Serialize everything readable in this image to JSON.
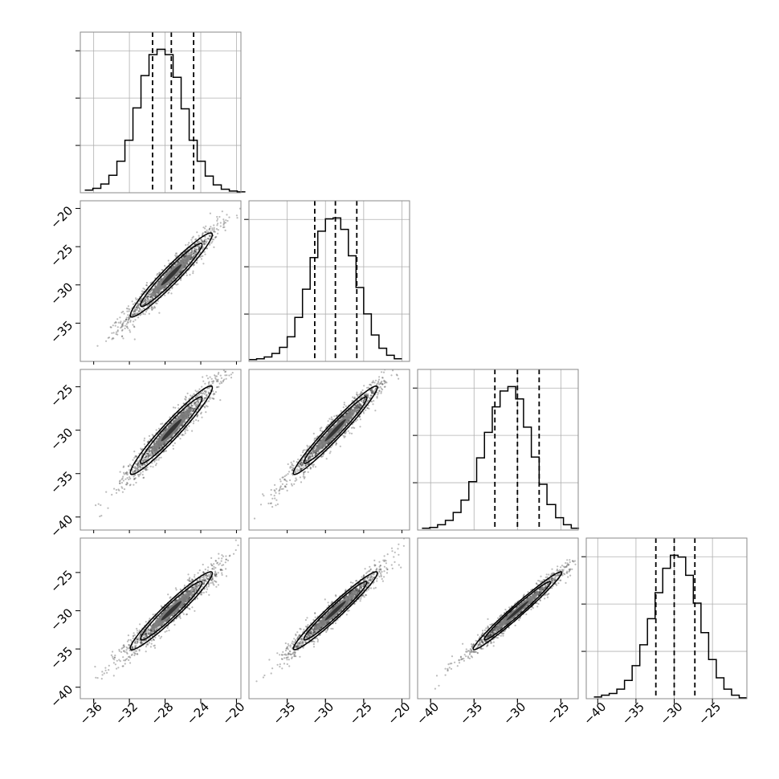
{
  "chart_data": {
    "type": "corner",
    "n_parameters": 4,
    "parameter_labels": [
      "",
      "",
      "",
      ""
    ],
    "axis_ranges": [
      [
        -37.5,
        -19.5
      ],
      [
        -40.0,
        -19.0
      ],
      [
        -41.5,
        -23.0
      ],
      [
        -41.5,
        -20.5
      ]
    ],
    "ticks": [
      [
        -36,
        -32,
        -28,
        -24,
        -20
      ],
      [
        -35,
        -30,
        -25,
        -20
      ],
      [
        -40,
        -35,
        -30,
        -25
      ],
      [
        -40,
        -35,
        -30,
        -25
      ]
    ],
    "tick_labels": [
      [
        "−36",
        "−32",
        "−28",
        "−24",
        "−20"
      ],
      [
        "−35",
        "−30",
        "−25",
        "−20"
      ],
      [
        "−40",
        "−35",
        "−30",
        "−25"
      ],
      [
        "−40",
        "−35",
        "−30",
        "−25"
      ]
    ],
    "marginals": [
      {
        "param": 0,
        "median": -27.3,
        "q16": -29.4,
        "q84": -24.8,
        "bin_edges": [
          -37.0,
          -36.1,
          -35.2,
          -34.3,
          -33.4,
          -32.5,
          -31.6,
          -30.7,
          -29.8,
          -28.9,
          -28.0,
          -27.1,
          -26.2,
          -25.3,
          -24.4,
          -23.5,
          -22.6,
          -21.7,
          -20.8,
          -19.9,
          -19.0
        ],
        "counts": [
          3,
          5,
          10,
          20,
          36,
          60,
          97,
          134,
          158,
          164,
          158,
          132,
          96,
          60,
          36,
          19,
          9,
          4,
          2,
          1
        ]
      },
      {
        "param": 1,
        "median": -28.7,
        "q16": -31.4,
        "q84": -25.9,
        "bin_edges": [
          -40.0,
          -39.0,
          -38.0,
          -37.0,
          -36.0,
          -35.0,
          -34.0,
          -33.0,
          -32.0,
          -31.0,
          -30.0,
          -29.0,
          -28.0,
          -27.0,
          -26.0,
          -25.0,
          -24.0,
          -23.0,
          -22.0,
          -21.0,
          -20.0
        ],
        "counts": [
          2,
          3,
          5,
          9,
          16,
          28,
          50,
          82,
          118,
          148,
          162,
          163,
          150,
          120,
          84,
          54,
          30,
          15,
          7,
          3
        ]
      },
      {
        "param": 2,
        "median": -30.0,
        "q16": -32.6,
        "q84": -27.5,
        "bin_edges": [
          -41.0,
          -40.1,
          -39.2,
          -38.3,
          -37.4,
          -36.5,
          -35.6,
          -34.7,
          -33.8,
          -32.9,
          -32.0,
          -31.1,
          -30.2,
          -29.3,
          -28.4,
          -27.5,
          -26.6,
          -25.6,
          -24.7,
          -23.8,
          -22.9
        ],
        "counts": [
          2,
          3,
          6,
          11,
          20,
          34,
          55,
          82,
          111,
          140,
          158,
          163,
          149,
          117,
          83,
          52,
          29,
          14,
          6,
          2
        ]
      },
      {
        "param": 3,
        "median": -30.0,
        "q16": -32.4,
        "q84": -27.3,
        "bin_edges": [
          -40.5,
          -39.5,
          -38.5,
          -37.5,
          -36.5,
          -35.5,
          -34.5,
          -33.5,
          -32.5,
          -31.5,
          -30.5,
          -29.5,
          -28.5,
          -27.5,
          -26.5,
          -25.5,
          -24.5,
          -23.5,
          -22.5,
          -21.5,
          -20.5
        ],
        "counts": [
          2,
          4,
          6,
          11,
          21,
          38,
          62,
          92,
          122,
          150,
          165,
          163,
          142,
          110,
          76,
          45,
          24,
          11,
          4,
          1
        ]
      }
    ],
    "pairs": [
      {
        "row": 1,
        "col": 0,
        "correlation": 0.96
      },
      {
        "row": 2,
        "col": 0,
        "correlation": 0.96
      },
      {
        "row": 2,
        "col": 1,
        "correlation": 0.97
      },
      {
        "row": 3,
        "col": 0,
        "correlation": 0.96
      },
      {
        "row": 3,
        "col": 1,
        "correlation": 0.97
      },
      {
        "row": 3,
        "col": 2,
        "correlation": 0.98
      }
    ],
    "grid": true,
    "colors": {
      "scatter": "#3c3c3c",
      "contour_levels": [
        "#e8e8e8",
        "#bdbdbd",
        "#7d7d7d",
        "#2e2e2e"
      ],
      "lines": "#000000"
    }
  }
}
